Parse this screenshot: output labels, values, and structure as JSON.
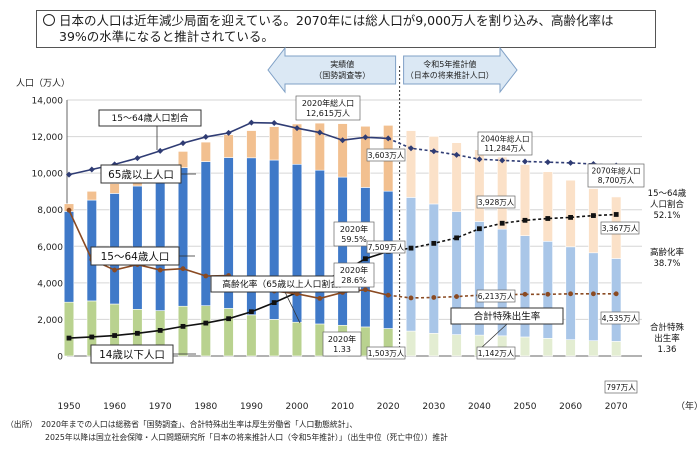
{
  "headline": {
    "line1": "日本の人口は近年減少局面を迎えている。2070年には総人口が9,000万人を割り込み、高齢化率は",
    "line2": "39%の水準になると推計されている。"
  },
  "axis": {
    "y_unit": "人口（万人）",
    "x_unit": "（年）",
    "y_ticks": [
      "0",
      "2,000",
      "4,000",
      "6,000",
      "8,000",
      "10,000",
      "12,000",
      "14,000"
    ],
    "x_ticks": [
      "1950",
      "1960",
      "1970",
      "1980",
      "1990",
      "2000",
      "2010",
      "2020",
      "2030",
      "2040",
      "2050",
      "2060",
      "2070"
    ]
  },
  "colors": {
    "under15": "#b9d28f",
    "working": "#3f79c8",
    "elderly": "#f2c090",
    "under15_proj": "#e3edd2",
    "working_proj": "#a9c6e8",
    "elderly_proj": "#fbe1c8",
    "ratio_line": "#2f3c74",
    "aging_line": "#111111",
    "tfr_line": "#8a4a22"
  },
  "arrows": {
    "left": {
      "line1": "実績値",
      "line2": "（国勢調査等）"
    },
    "right": {
      "line1": "令和5年推計値",
      "line2": "（日本の将来推計人口）"
    }
  },
  "labels": {
    "ratio": "15～64歳人口割合",
    "elderly": "65歳以上人口",
    "working": "15～64歳人口",
    "aging": "高齢化率（65歳以上人口割合）",
    "tfr": "合計特殊出生率",
    "young": "14歳以下人口"
  },
  "annotations": {
    "total2020": [
      "2020年総人口",
      "12,615万人"
    ],
    "total2040": [
      "2040年総人口",
      "11,284万人"
    ],
    "total2070": [
      "2070年総人口",
      "8,700万人"
    ],
    "elderly2020": "3,603万人",
    "elderly2040": "3,928万人",
    "elderly2070": "3,367万人",
    "working2020": "7,509万人",
    "working2040": "6,213万人",
    "working2070": "4,535万人",
    "young2020": "1,503万人",
    "young2040": "1,142万人",
    "young2070": "797万人",
    "ratio2020": [
      "2020年",
      "59.5%"
    ],
    "aging2020": [
      "2020年",
      "28.6%"
    ],
    "tfr2020": [
      "2020年",
      "1.33"
    ]
  },
  "right_labels": {
    "ratio": [
      "15～64歳",
      "人口割合",
      "52.1%"
    ],
    "aging": [
      "高齢化率",
      "38.7%"
    ],
    "tfr": [
      "合計特殊",
      "出生率",
      "1.36"
    ]
  },
  "footnote": {
    "line1": "（出所）　2020年までの人口は総務省「国勢調査」、合計特殊出生率は厚生労働省「人口動態統計」、",
    "line2": "　　　　　2025年以降は国立社会保障・人口問題研究所「日本の将来推計人口（令和5年推計）」（出生中位（死亡中位））推計"
  },
  "chart_data": {
    "type": "bar",
    "stacked": true,
    "xlabel": "",
    "ylabel": "人口（万人）",
    "ylim": [
      0,
      14000
    ],
    "y2lim_percent": [
      0,
      70
    ],
    "y2_note": "secondary lines: 15-64 share (%) and aging rate (%) plotted so that 14,000 = 70%; total fertility rate plotted so that 14,000 = 5.6",
    "categories": [
      "1950",
      "1955",
      "1960",
      "1965",
      "1970",
      "1975",
      "1980",
      "1985",
      "1990",
      "1995",
      "2000",
      "2005",
      "2010",
      "2015",
      "2020",
      "2025",
      "2030",
      "2035",
      "2040",
      "2045",
      "2050",
      "2055",
      "2060",
      "2065",
      "2070"
    ],
    "actual_until": "2020",
    "series": [
      {
        "name": "14歳以下人口",
        "values": [
          2943,
          3012,
          2843,
          2553,
          2482,
          2722,
          2751,
          2603,
          2249,
          2001,
          1847,
          1752,
          1680,
          1589,
          1503,
          1363,
          1240,
          1169,
          1142,
          1103,
          1041,
          966,
          893,
          836,
          797
        ]
      },
      {
        "name": "15～64歳人口",
        "values": [
          4966,
          5517,
          6047,
          6744,
          7157,
          7581,
          7883,
          8251,
          8590,
          8716,
          8638,
          8409,
          8103,
          7629,
          7509,
          7310,
          7076,
          6722,
          6213,
          5832,
          5540,
          5306,
          5078,
          4809,
          4535
        ]
      },
      {
        "name": "65歳以上人口",
        "values": [
          416,
          479,
          540,
          624,
          739,
          887,
          1065,
          1247,
          1489,
          1826,
          2204,
          2576,
          2925,
          3347,
          3603,
          3653,
          3696,
          3773,
          3928,
          3945,
          3888,
          3804,
          3644,
          3513,
          3367
        ]
      }
    ],
    "lines": [
      {
        "name": "15～64歳人口割合",
        "unit": "%",
        "values": [
          49.6,
          51.0,
          52.4,
          54.1,
          56.1,
          58.2,
          59.9,
          61.0,
          63.8,
          63.7,
          62.3,
          61.1,
          59.0,
          59.8,
          59.5,
          56.8,
          56.0,
          55.0,
          53.8,
          53.5,
          53.2,
          53.0,
          52.8,
          52.5,
          52.1
        ]
      },
      {
        "name": "高齢化率",
        "unit": "%",
        "values": [
          4.9,
          5.2,
          5.6,
          6.2,
          7.0,
          8.1,
          9.0,
          10.2,
          12.1,
          14.6,
          17.4,
          20.2,
          23.0,
          26.6,
          28.6,
          29.5,
          30.8,
          32.3,
          34.8,
          36.3,
          37.1,
          37.6,
          37.9,
          38.4,
          38.7
        ]
      },
      {
        "name": "合計特殊出生率",
        "unit": "",
        "values": [
          3.19,
          2.11,
          1.88,
          2.0,
          1.88,
          1.91,
          1.75,
          1.76,
          1.54,
          1.42,
          1.36,
          1.26,
          1.39,
          1.45,
          1.33,
          1.27,
          1.28,
          1.3,
          1.33,
          1.34,
          1.35,
          1.35,
          1.36,
          1.36,
          1.36
        ]
      }
    ]
  }
}
